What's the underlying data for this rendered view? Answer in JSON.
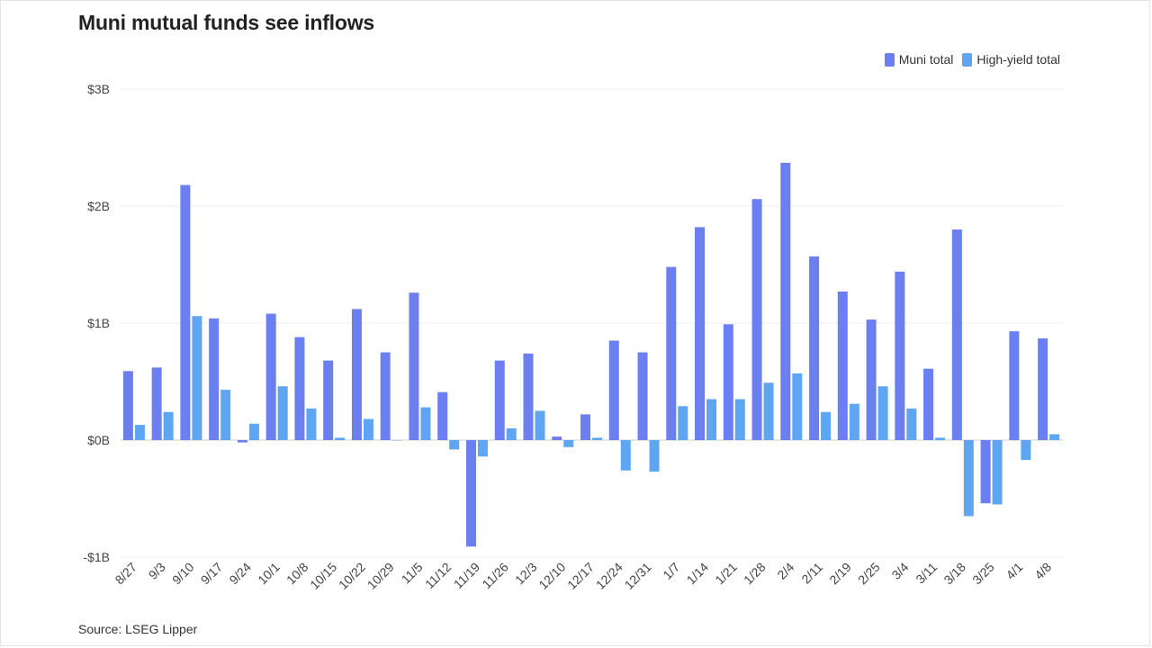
{
  "title": "Muni mutual funds see inflows",
  "source": "Source: LSEG Lipper",
  "colors": {
    "muni": "#6b7ff0",
    "high_yield": "#5ea6f2",
    "grid": "#ececec",
    "zero": "#cfcfcf"
  },
  "chart_data": {
    "type": "bar",
    "title": "Muni mutual funds see inflows",
    "xlabel": "",
    "ylabel": "",
    "ylim": [
      -1,
      3
    ],
    "yunit": "billions of dollars",
    "yticks": [
      {
        "value": 3,
        "label": "$3B"
      },
      {
        "value": 2,
        "label": "$2B"
      },
      {
        "value": 1,
        "label": "$1B"
      },
      {
        "value": 0,
        "label": "$0B"
      },
      {
        "value": -1,
        "label": "-$1B"
      }
    ],
    "legend_position": "top-right",
    "categories": [
      "8/27",
      "9/3",
      "9/10",
      "9/17",
      "9/24",
      "10/1",
      "10/8",
      "10/15",
      "10/22",
      "10/29",
      "11/5",
      "11/12",
      "11/19",
      "11/26",
      "12/3",
      "12/10",
      "12/17",
      "12/24",
      "12/31",
      "1/7",
      "1/14",
      "1/21",
      "1/28",
      "2/4",
      "2/11",
      "2/19",
      "2/25",
      "3/4",
      "3/11",
      "3/18",
      "3/25",
      "4/1",
      "4/8"
    ],
    "series": [
      {
        "name": "Muni total",
        "values": [
          0.59,
          0.62,
          2.18,
          1.04,
          -0.02,
          1.08,
          0.88,
          0.68,
          1.12,
          0.75,
          1.26,
          0.41,
          -0.91,
          0.68,
          0.74,
          0.03,
          0.22,
          0.85,
          0.75,
          1.48,
          1.82,
          0.99,
          2.06,
          2.37,
          1.57,
          1.27,
          1.03,
          1.44,
          0.61,
          1.8,
          -0.54,
          0.93,
          0.87
        ]
      },
      {
        "name": "High-yield total",
        "values": [
          0.13,
          0.24,
          1.06,
          0.43,
          0.14,
          0.46,
          0.27,
          0.02,
          0.18,
          0.0,
          0.28,
          -0.08,
          -0.14,
          0.1,
          0.25,
          -0.06,
          0.02,
          -0.26,
          -0.27,
          0.29,
          0.35,
          0.35,
          0.49,
          0.57,
          0.24,
          0.31,
          0.46,
          0.27,
          0.02,
          -0.65,
          -0.55,
          -0.17,
          0.05
        ]
      }
    ]
  }
}
